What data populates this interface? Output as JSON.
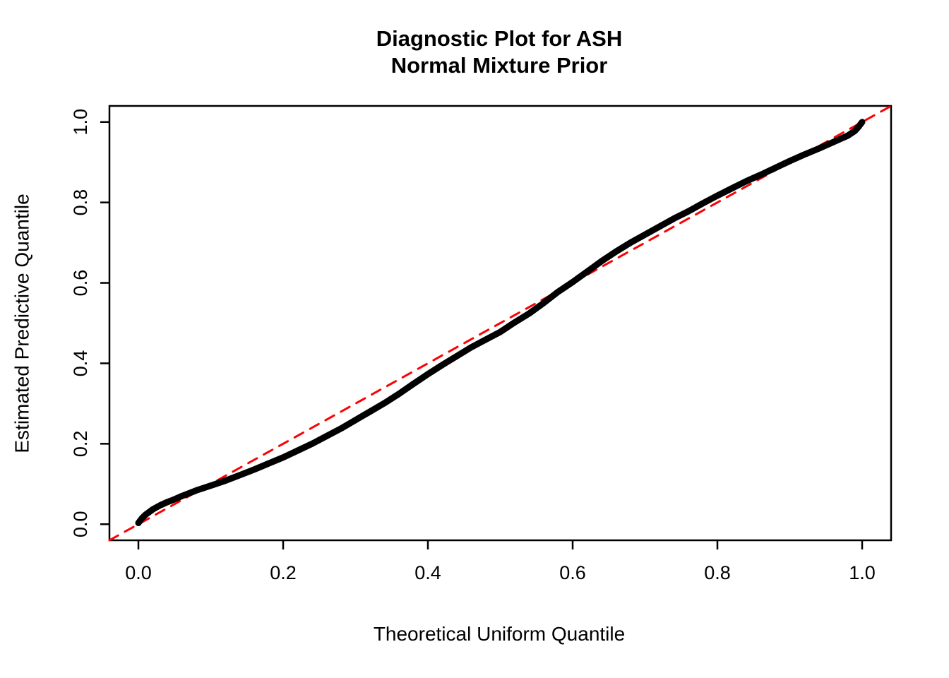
{
  "title": {
    "line1": "Diagnostic Plot for ASH",
    "line2": "Normal Mixture Prior"
  },
  "axes": {
    "xlabel": "Theoretical Uniform Quantile",
    "ylabel": "Estimated Predictive Quantile"
  },
  "colors": {
    "background": "#ffffff",
    "text": "#000000",
    "curve": "#000000",
    "reference_line": "#ff0000"
  },
  "chart_data": {
    "type": "line",
    "title": "Diagnostic Plot for ASH\nNormal Mixture Prior",
    "xlabel": "Theoretical Uniform Quantile",
    "ylabel": "Estimated Predictive Quantile",
    "xlim": [
      -0.04,
      1.04
    ],
    "ylim": [
      -0.04,
      1.04
    ],
    "xticks": [
      0.0,
      0.2,
      0.4,
      0.6,
      0.8,
      1.0
    ],
    "yticks": [
      0.0,
      0.2,
      0.4,
      0.6,
      0.8,
      1.0
    ],
    "xtick_labels": [
      "0.0",
      "0.2",
      "0.4",
      "0.6",
      "0.8",
      "1.0"
    ],
    "ytick_labels": [
      "0.0",
      "0.2",
      "0.4",
      "0.6",
      "0.8",
      "1.0"
    ],
    "grid": false,
    "legend": null,
    "series": [
      {
        "name": "reference-line-y-equals-x",
        "style": "dashed",
        "color": "#ff0000",
        "width": 3,
        "dash": [
          14,
          11
        ],
        "points": [
          [
            -0.04,
            -0.04
          ],
          [
            1.04,
            1.04
          ]
        ]
      },
      {
        "name": "estimated-vs-theoretical-quantile-curve",
        "style": "solid",
        "color": "#000000",
        "width": 9,
        "dash": null,
        "points": [
          [
            0.0,
            0.003
          ],
          [
            0.002,
            0.008
          ],
          [
            0.005,
            0.015
          ],
          [
            0.01,
            0.024
          ],
          [
            0.02,
            0.037
          ],
          [
            0.03,
            0.047
          ],
          [
            0.04,
            0.055
          ],
          [
            0.05,
            0.062
          ],
          [
            0.06,
            0.07
          ],
          [
            0.07,
            0.077
          ],
          [
            0.08,
            0.084
          ],
          [
            0.09,
            0.09
          ],
          [
            0.1,
            0.096
          ],
          [
            0.12,
            0.108
          ],
          [
            0.14,
            0.122
          ],
          [
            0.16,
            0.136
          ],
          [
            0.18,
            0.151
          ],
          [
            0.2,
            0.166
          ],
          [
            0.22,
            0.183
          ],
          [
            0.24,
            0.2
          ],
          [
            0.26,
            0.219
          ],
          [
            0.28,
            0.238
          ],
          [
            0.3,
            0.259
          ],
          [
            0.32,
            0.28
          ],
          [
            0.34,
            0.301
          ],
          [
            0.36,
            0.324
          ],
          [
            0.38,
            0.349
          ],
          [
            0.4,
            0.373
          ],
          [
            0.42,
            0.396
          ],
          [
            0.44,
            0.418
          ],
          [
            0.46,
            0.44
          ],
          [
            0.48,
            0.459
          ],
          [
            0.5,
            0.478
          ],
          [
            0.52,
            0.502
          ],
          [
            0.54,
            0.524
          ],
          [
            0.56,
            0.55
          ],
          [
            0.58,
            0.578
          ],
          [
            0.6,
            0.602
          ],
          [
            0.62,
            0.628
          ],
          [
            0.64,
            0.654
          ],
          [
            0.66,
            0.678
          ],
          [
            0.68,
            0.7
          ],
          [
            0.7,
            0.72
          ],
          [
            0.72,
            0.74
          ],
          [
            0.74,
            0.76
          ],
          [
            0.76,
            0.778
          ],
          [
            0.78,
            0.798
          ],
          [
            0.8,
            0.817
          ],
          [
            0.82,
            0.835
          ],
          [
            0.84,
            0.853
          ],
          [
            0.86,
            0.869
          ],
          [
            0.88,
            0.886
          ],
          [
            0.9,
            0.903
          ],
          [
            0.92,
            0.919
          ],
          [
            0.94,
            0.934
          ],
          [
            0.95,
            0.942
          ],
          [
            0.96,
            0.95
          ],
          [
            0.97,
            0.958
          ],
          [
            0.98,
            0.966
          ],
          [
            0.985,
            0.972
          ],
          [
            0.99,
            0.978
          ],
          [
            0.995,
            0.988
          ],
          [
            0.998,
            0.995
          ],
          [
            1.0,
            1.0
          ]
        ]
      }
    ]
  }
}
